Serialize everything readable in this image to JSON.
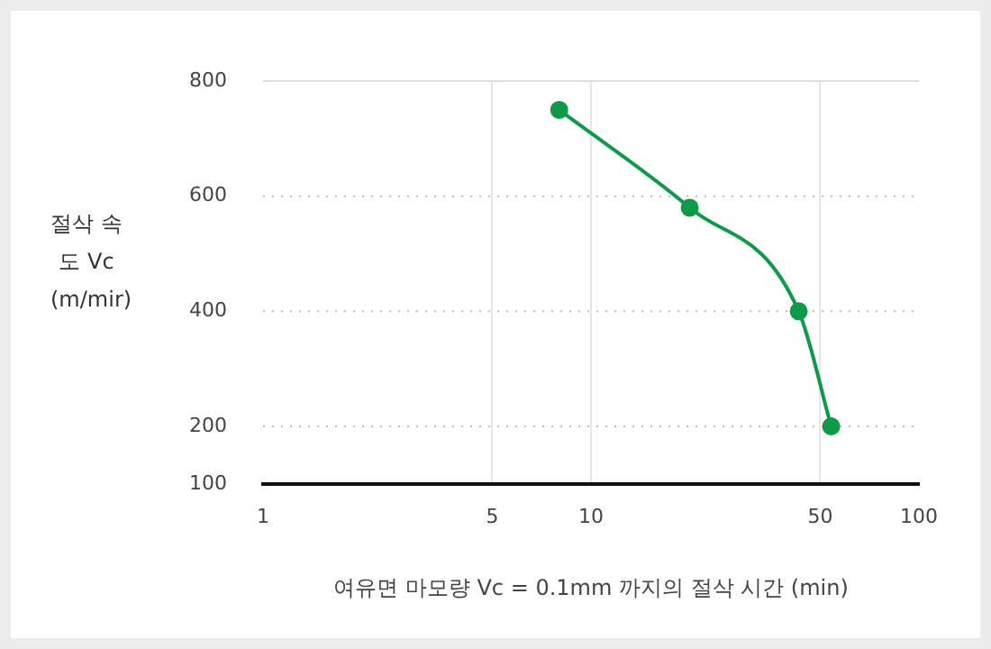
{
  "chart_data": {
    "type": "line",
    "xlabel": "여유면 마모량 Vc = 0.1mm 까지의 절삭 시간 (min)",
    "ylabel": "절삭 속도 Vc (m/mir)",
    "x": [
      8,
      20,
      43,
      54
    ],
    "series": [
      {
        "color": "#0e9a48",
        "values": [
          750,
          580,
          400,
          200
        ]
      }
    ],
    "log": "x",
    "xlim": [
      1,
      100
    ],
    "xticks": [
      1,
      5,
      10,
      50,
      100
    ],
    "ylim": [
      100,
      800
    ],
    "yticks": [
      100,
      200,
      400,
      600,
      800
    ],
    "grid": true,
    "legend": false,
    "marker": "circle",
    "line_style": "solid"
  }
}
